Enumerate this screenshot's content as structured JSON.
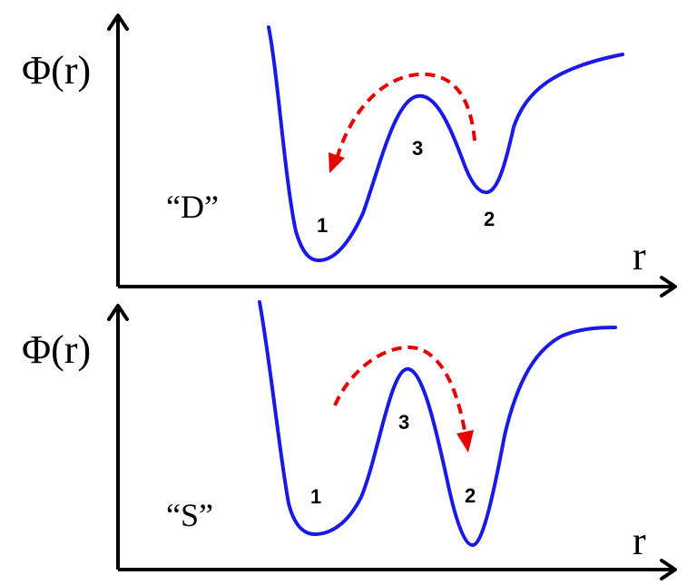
{
  "panels": [
    {
      "label": "“D”",
      "y_axis_label": "Φ(r)",
      "x_axis_label": "r",
      "points": {
        "p1": "1",
        "p2": "2",
        "p3": "3"
      },
      "transition_direction": "from 2 over 3 to 1"
    },
    {
      "label": "“S”",
      "y_axis_label": "Φ(r)",
      "x_axis_label": "r",
      "points": {
        "p1": "1",
        "p2": "2",
        "p3": "3"
      },
      "transition_direction": "from 1 over 3 to 2"
    }
  ],
  "colors": {
    "curve": "#1a1ae6",
    "transition_arrow": "#e60000",
    "axes": "#000000"
  }
}
